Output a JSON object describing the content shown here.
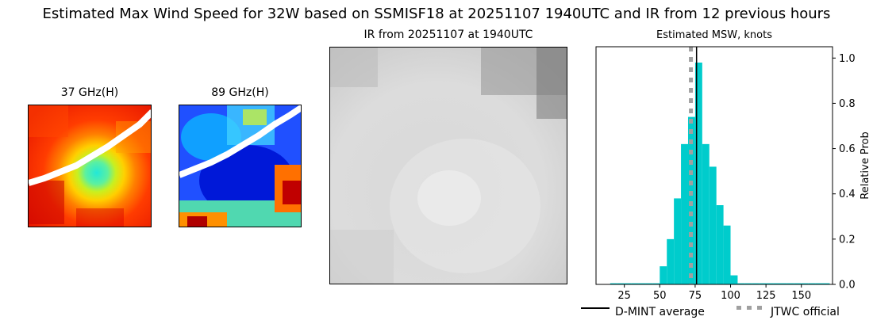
{
  "figure": {
    "title": "Estimated Max Wind Speed for 32W based on SSMISF18 at 20251107 1940UTC and IR from 12 previous hours"
  },
  "panels": {
    "p37": {
      "title": "37 GHz(H)"
    },
    "p89": {
      "title": "89 GHz(H)"
    },
    "ir": {
      "title": "IR from 20251107 at 1940UTC"
    }
  },
  "chart_data": {
    "type": "bar",
    "title": "Estimated MSW, knots",
    "xlabel": "",
    "ylabel": "Relative Prob",
    "xlim": [
      5,
      172
    ],
    "ylim": [
      0,
      1.05
    ],
    "x_ticks": [
      "25",
      "50",
      "75",
      "100",
      "125",
      "150"
    ],
    "y_ticks": [
      "0.0",
      "0.2",
      "0.4",
      "0.6",
      "0.8",
      "1.0"
    ],
    "y_axis_side": "right",
    "bin_width": 5,
    "bar_color": "#00cccc",
    "series": [
      {
        "name": "",
        "bins": [
          {
            "x": 15,
            "y": 0.005
          },
          {
            "x": 20,
            "y": 0.005
          },
          {
            "x": 25,
            "y": 0.005
          },
          {
            "x": 30,
            "y": 0.005
          },
          {
            "x": 35,
            "y": 0.005
          },
          {
            "x": 40,
            "y": 0.005
          },
          {
            "x": 45,
            "y": 0.005
          },
          {
            "x": 50,
            "y": 0.08
          },
          {
            "x": 55,
            "y": 0.2
          },
          {
            "x": 60,
            "y": 0.38
          },
          {
            "x": 65,
            "y": 0.62
          },
          {
            "x": 70,
            "y": 0.74
          },
          {
            "x": 75,
            "y": 0.98
          },
          {
            "x": 80,
            "y": 0.62
          },
          {
            "x": 85,
            "y": 0.52
          },
          {
            "x": 90,
            "y": 0.35
          },
          {
            "x": 95,
            "y": 0.26
          },
          {
            "x": 100,
            "y": 0.04
          },
          {
            "x": 105,
            "y": 0.005
          },
          {
            "x": 110,
            "y": 0.005
          },
          {
            "x": 115,
            "y": 0.005
          },
          {
            "x": 120,
            "y": 0.005
          },
          {
            "x": 125,
            "y": 0.005
          },
          {
            "x": 130,
            "y": 0.005
          },
          {
            "x": 135,
            "y": 0.005
          },
          {
            "x": 140,
            "y": 0.005
          },
          {
            "x": 145,
            "y": 0.005
          },
          {
            "x": 150,
            "y": 0.005
          },
          {
            "x": 155,
            "y": 0.005
          },
          {
            "x": 160,
            "y": 0.005
          },
          {
            "x": 165,
            "y": 0.005
          }
        ]
      }
    ],
    "lines": [
      {
        "name": "D-MINT average",
        "x": 76,
        "style": "solid",
        "color": "#000000"
      },
      {
        "name": "JTWC official",
        "x": 72,
        "style": "dotted",
        "color": "#a0a0a0"
      }
    ],
    "legend": {
      "placement": "bottom",
      "entries": [
        "D-MINT average",
        "JTWC official"
      ]
    }
  }
}
